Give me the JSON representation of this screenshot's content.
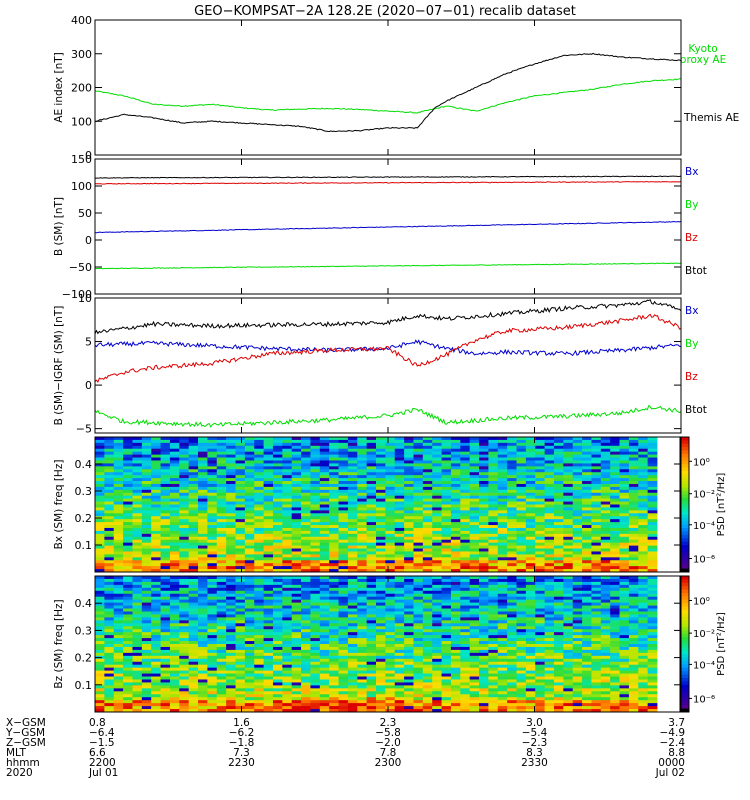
{
  "title": "GEO−KOMPSAT−2A 128.2E (2020−07−01) recalib dataset",
  "chart_data": [
    {
      "type": "line",
      "ylabel": "AE index [nT]",
      "ylim": [
        0,
        400
      ],
      "yticks": [
        "0",
        "100",
        "200",
        "300",
        "400"
      ],
      "legend_placement": "right",
      "series": [
        {
          "name": "Kyoto proxy AE",
          "color": "#00dd00",
          "line2": "proxy AE",
          "name1": "Kyoto",
          "x": [
            0,
            0.05,
            0.1,
            0.15,
            0.2,
            0.25,
            0.3,
            0.35,
            0.4,
            0.45,
            0.5,
            0.55,
            0.6,
            0.65,
            0.7,
            0.75,
            0.8,
            0.85,
            0.9,
            0.95,
            1.0
          ],
          "y": [
            190,
            175,
            150,
            145,
            150,
            140,
            133,
            136,
            138,
            135,
            130,
            125,
            145,
            130,
            155,
            175,
            185,
            195,
            210,
            220,
            225
          ]
        },
        {
          "name": "Themis AE",
          "color": "#000000",
          "x": [
            0,
            0.05,
            0.1,
            0.15,
            0.2,
            0.25,
            0.3,
            0.35,
            0.4,
            0.45,
            0.5,
            0.55,
            0.58,
            0.6,
            0.65,
            0.7,
            0.75,
            0.8,
            0.85,
            0.9,
            0.95,
            1.0
          ],
          "y": [
            100,
            120,
            110,
            95,
            100,
            95,
            90,
            85,
            70,
            72,
            80,
            80,
            140,
            160,
            200,
            240,
            270,
            295,
            300,
            290,
            285,
            280
          ]
        }
      ]
    },
    {
      "type": "line",
      "ylabel": "B (SM) [nT]",
      "ylim": [
        -100,
        150
      ],
      "yticks": [
        "−100",
        "−50",
        "0",
        "50",
        "100",
        "150"
      ],
      "legend_placement": "right",
      "series": [
        {
          "name": "Bx",
          "color": "#0000cc",
          "x": [
            0,
            1
          ],
          "y": [
            14,
            34
          ]
        },
        {
          "name": "By",
          "color": "#00dd00",
          "x": [
            0,
            1
          ],
          "y": [
            -53,
            -43
          ]
        },
        {
          "name": "Bz",
          "color": "#dd0000",
          "x": [
            0,
            1
          ],
          "y": [
            104,
            108
          ]
        },
        {
          "name": "Btot",
          "color": "#000000",
          "x": [
            0,
            1
          ],
          "y": [
            115,
            118
          ]
        }
      ]
    },
    {
      "type": "line",
      "ylabel": "B (SM)−IGRF (SM) [nT]",
      "ylim": [
        -5.5,
        10
      ],
      "yticks": [
        "−5",
        "0",
        "5",
        "10"
      ],
      "legend_placement": "right",
      "series": [
        {
          "name": "Bx",
          "color": "#0000cc",
          "x": [
            0,
            0.1,
            0.2,
            0.3,
            0.4,
            0.5,
            0.55,
            0.6,
            0.65,
            0.7,
            0.8,
            0.9,
            1.0
          ],
          "y": [
            4.6,
            4.8,
            4.5,
            4.2,
            4.0,
            4.2,
            5.0,
            4.2,
            3.6,
            3.8,
            3.6,
            4.0,
            4.6
          ]
        },
        {
          "name": "By",
          "color": "#00dd00",
          "x": [
            0,
            0.05,
            0.1,
            0.2,
            0.3,
            0.4,
            0.5,
            0.55,
            0.6,
            0.7,
            0.8,
            0.9,
            0.95,
            1.0
          ],
          "y": [
            -3.0,
            -4.2,
            -4.3,
            -4.6,
            -4.3,
            -4.0,
            -3.5,
            -2.8,
            -4.3,
            -3.8,
            -3.6,
            -3.2,
            -2.5,
            -3.0
          ]
        },
        {
          "name": "Bz",
          "color": "#dd0000",
          "x": [
            0,
            0.05,
            0.1,
            0.2,
            0.3,
            0.4,
            0.5,
            0.55,
            0.6,
            0.65,
            0.7,
            0.8,
            0.9,
            0.95,
            1.0
          ],
          "y": [
            0.4,
            1.5,
            2.0,
            2.5,
            3.6,
            4.0,
            4.2,
            2.2,
            3.5,
            5.2,
            6.2,
            6.6,
            7.4,
            8.0,
            6.6
          ]
        },
        {
          "name": "Btot",
          "color": "#000000",
          "x": [
            0,
            0.1,
            0.2,
            0.3,
            0.4,
            0.5,
            0.55,
            0.6,
            0.7,
            0.8,
            0.9,
            0.95,
            1.0
          ],
          "y": [
            6.0,
            7.0,
            6.8,
            6.9,
            7.0,
            7.2,
            8.0,
            7.6,
            8.2,
            8.8,
            9.2,
            9.6,
            8.6
          ]
        }
      ]
    },
    {
      "type": "heatmap",
      "ylabel": "Bx (SM) freq [Hz]",
      "ylim": [
        0,
        0.5
      ],
      "yticks": [
        "0.1",
        "0.2",
        "0.3",
        "0.4"
      ],
      "colorbar_label": "PSD [nT²/Hz]",
      "colorbar_ticks": [
        "10⁰",
        "10⁻²",
        "10⁻⁴",
        "10⁻⁶"
      ]
    },
    {
      "type": "heatmap",
      "ylabel": "Bz (SM) freq [Hz]",
      "ylim": [
        0,
        0.5
      ],
      "yticks": [
        "0.1",
        "0.2",
        "0.3",
        "0.4"
      ],
      "colorbar_label": "PSD [nT²/Hz]",
      "colorbar_ticks": [
        "10⁰",
        "10⁻²",
        "10⁻⁴",
        "10⁻⁶"
      ]
    }
  ],
  "footer": {
    "labels": [
      "X−GSM",
      "Y−GSM",
      "Z−GSM",
      "MLT",
      "hhmm",
      "2020"
    ],
    "columns": [
      [
        "0.8",
        "−6.4",
        "−1.5",
        "6.6",
        "2200",
        "Jul 01"
      ],
      [
        "1.6",
        "−6.2",
        "−1.8",
        "7.3",
        "2230",
        ""
      ],
      [
        "2.3",
        "−5.8",
        "−2.0",
        "7.8",
        "2300",
        ""
      ],
      [
        "3.0",
        "−5.4",
        "−2.3",
        "8.3",
        "2330",
        ""
      ],
      [
        "3.7",
        "−4.9",
        "−2.4",
        "8.8",
        "0000",
        "Jul 02"
      ]
    ]
  }
}
